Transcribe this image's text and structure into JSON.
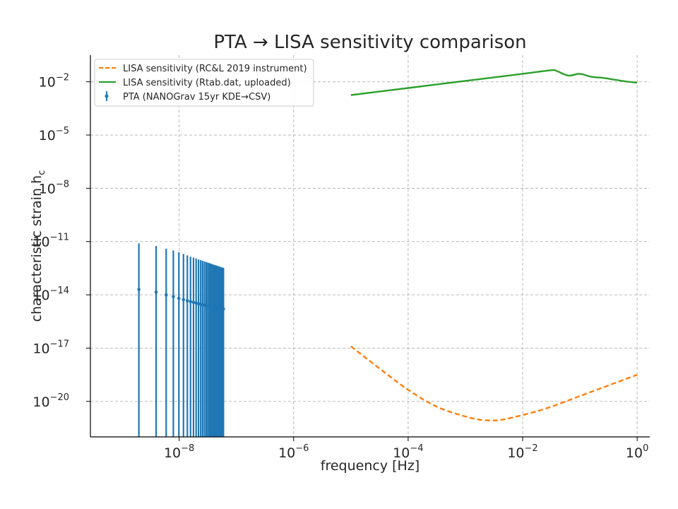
{
  "chart_data": {
    "type": "line",
    "title": "PTA → LISA sensitivity comparison",
    "xlabel": "frequency [Hz]",
    "ylabel": "characteristic strain h",
    "ylabel_subscript": "c",
    "xscale": "log",
    "yscale": "log",
    "xlim_exp": [
      -9.55,
      0.22
    ],
    "ylim_exp": [
      -22,
      -0.5
    ],
    "grid": true,
    "legend_position": "top-left",
    "x_ticks": [
      {
        "base": "10",
        "exp": "−8",
        "value": -8
      },
      {
        "base": "10",
        "exp": "−6",
        "value": -6
      },
      {
        "base": "10",
        "exp": "−4",
        "value": -4
      },
      {
        "base": "10",
        "exp": "−2",
        "value": -2
      },
      {
        "base": "10",
        "exp": "0",
        "value": 0
      }
    ],
    "y_ticks": [
      {
        "base": "10",
        "exp": "−2",
        "value": -2
      },
      {
        "base": "10",
        "exp": "−5",
        "value": -5
      },
      {
        "base": "10",
        "exp": "−8",
        "value": -8
      },
      {
        "base": "10",
        "exp": "−11",
        "value": -11
      },
      {
        "base": "10",
        "exp": "−14",
        "value": -14
      },
      {
        "base": "10",
        "exp": "−17",
        "value": -17
      },
      {
        "base": "10",
        "exp": "−20",
        "value": -20
      }
    ],
    "series": [
      {
        "name": "LISA sensitivity (RC&L 2019 instrument)",
        "color": "#ff7f0e",
        "style": "dashed",
        "log10_f": [
          -5,
          -4.5,
          -4,
          -3.5,
          -3,
          -2.7,
          -2.4,
          -2.1,
          -1.8,
          -1.5,
          -1,
          -0.5,
          0
        ],
        "log10_hc": [
          -16.9,
          -18.15,
          -19.35,
          -20.3,
          -20.85,
          -21.05,
          -21.05,
          -20.85,
          -20.6,
          -20.3,
          -19.7,
          -19.1,
          -18.5
        ]
      },
      {
        "name": "LISA sensitivity (Rtab.dat, uploaded)",
        "color": "#2ca02c",
        "style": "solid",
        "log10_f": [
          -5,
          -4,
          -3,
          -2,
          -1.5,
          -1.4,
          -1.2,
          -1,
          -0.8,
          -0.6,
          -0.4,
          -0.2,
          0
        ],
        "log10_hc": [
          -2.75,
          -2.35,
          -1.95,
          -1.55,
          -1.35,
          -1.4,
          -1.65,
          -1.55,
          -1.72,
          -1.78,
          -1.88,
          -1.98,
          -2.05
        ]
      },
      {
        "name": "PTA (NANOGrav 15yr KDE→CSV)",
        "color": "#1f77b4",
        "style": "errorbar",
        "frequencies_hz": [
          1.98e-09,
          3.96e-09,
          5.94e-09,
          7.92e-09,
          9.9e-09,
          1.19e-08,
          1.39e-08,
          1.58e-08,
          1.78e-08,
          1.98e-08,
          2.18e-08,
          2.38e-08,
          2.57e-08,
          2.77e-08,
          2.97e-08,
          3.17e-08,
          3.37e-08,
          3.56e-08,
          3.76e-08,
          3.96e-08,
          4.16e-08,
          4.36e-08,
          4.55e-08,
          4.75e-08,
          4.95e-08,
          5.15e-08,
          5.35e-08,
          5.54e-08,
          5.74e-08,
          5.94e-08
        ],
        "log10_hc": [
          -13.7,
          -13.85,
          -14.0,
          -14.1,
          -14.2,
          -14.27,
          -14.33,
          -14.38,
          -14.42,
          -14.46,
          -14.5,
          -14.53,
          -14.56,
          -14.58,
          -14.6,
          -14.62,
          -14.64,
          -14.66,
          -14.68,
          -14.7,
          -14.71,
          -14.72,
          -14.73,
          -14.74,
          -14.75,
          -14.76,
          -14.77,
          -14.78,
          -14.79,
          -14.8
        ],
        "log10_hc_upper": [
          -11.1,
          -11.25,
          -11.4,
          -11.5,
          -11.6,
          -11.7,
          -11.78,
          -11.85,
          -11.9,
          -11.95,
          -12.0,
          -12.04,
          -12.08,
          -12.12,
          -12.15,
          -12.18,
          -12.21,
          -12.24,
          -12.27,
          -12.3,
          -12.32,
          -12.34,
          -12.36,
          -12.38,
          -12.4,
          -12.42,
          -12.44,
          -12.46,
          -12.47,
          -12.48
        ],
        "log10_hc_lower": [
          -22,
          -22,
          -22,
          -22,
          -22,
          -22,
          -22,
          -22,
          -22,
          -22,
          -22,
          -22,
          -22,
          -22,
          -22,
          -22,
          -22,
          -22,
          -22,
          -22,
          -22,
          -22,
          -22,
          -22,
          -22,
          -22,
          -22,
          -22,
          -22,
          -22
        ]
      }
    ]
  }
}
